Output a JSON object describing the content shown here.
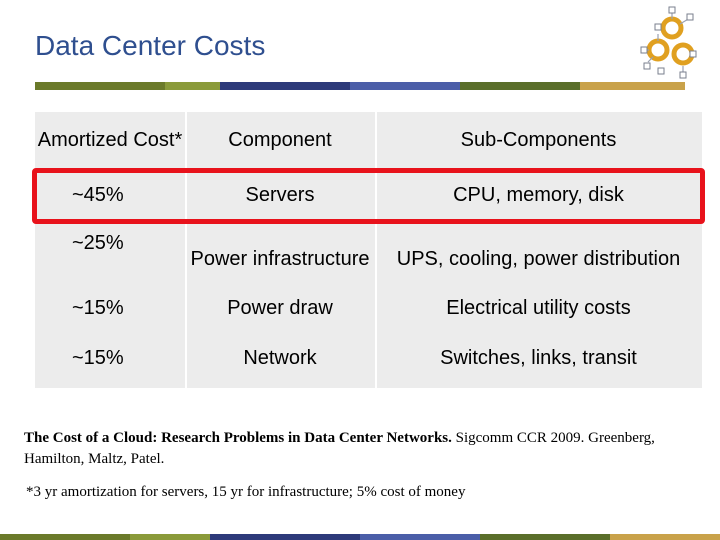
{
  "slide": {
    "title": "Data Center Costs",
    "colors": {
      "title": "#2f4f8f",
      "bar": [
        "#6b7a2a",
        "#8a9a3a",
        "#2d3a7a",
        "#4b5ea8",
        "#5a6e2a",
        "#c9a24a"
      ],
      "highlight": "#e8121b",
      "table_bg": "#ececec"
    }
  },
  "table": {
    "headers": [
      "Amortized Cost*",
      "Component",
      "Sub-Components"
    ],
    "rows": [
      {
        "cost": "~45%",
        "component": "Servers",
        "sub": "CPU, memory, disk"
      },
      {
        "cost": "~25%",
        "component": "Power infrastructure",
        "sub": "UPS, cooling, power distribution"
      },
      {
        "cost": "~15%",
        "component": "Power draw",
        "sub": "Electrical utility costs"
      },
      {
        "cost": "~15%",
        "component": "Network",
        "sub": "Switches, links, transit"
      }
    ],
    "highlighted_row": 0
  },
  "citation": {
    "bold": "The Cost of a Cloud: Research Problems in Data Center Networks.",
    "rest": " Sigcomm CCR 2009. Greenberg, Hamilton, Maltz, Patel."
  },
  "footnote": "*3 yr amortization for servers, 15 yr for infrastructure; 5% cost of money",
  "logo": {
    "icon": "network-gears-icon"
  }
}
